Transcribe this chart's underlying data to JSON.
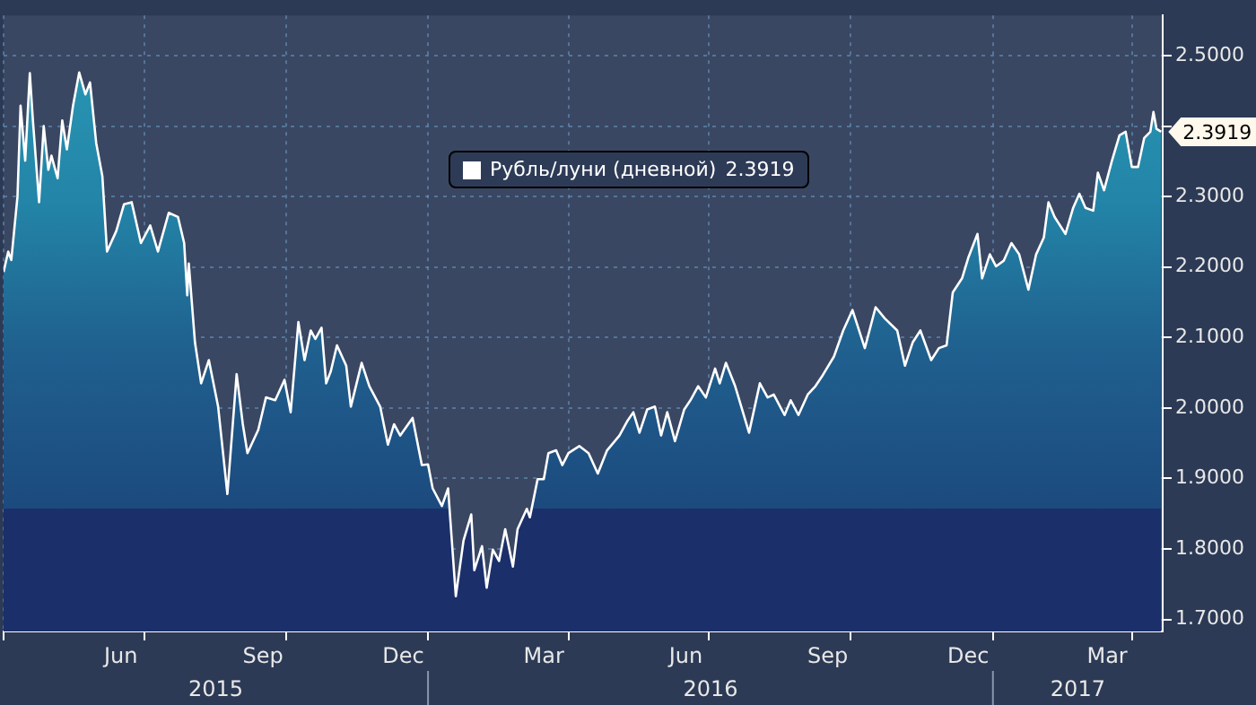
{
  "chart_data": {
    "type": "area",
    "series": [
      {
        "name": "Рубль/луни (дневной)",
        "color": "#ffffff",
        "x": [
          "2015-04-01",
          "2015-04-04",
          "2015-04-06",
          "2015-04-10",
          "2015-04-12",
          "2015-04-15",
          "2015-04-18",
          "2015-04-20",
          "2015-04-24",
          "2015-04-27",
          "2015-04-30",
          "2015-05-02",
          "2015-05-06",
          "2015-05-09",
          "2015-05-12",
          "2015-05-16",
          "2015-05-20",
          "2015-05-24",
          "2015-05-27",
          "2015-05-31",
          "2015-06-04",
          "2015-06-07",
          "2015-06-13",
          "2015-06-18",
          "2015-06-23",
          "2015-06-29",
          "2015-07-05",
          "2015-07-10",
          "2015-07-17",
          "2015-07-23",
          "2015-07-27",
          "2015-07-29",
          "2015-07-30",
          "2015-08-03",
          "2015-08-07",
          "2015-08-12",
          "2015-08-18",
          "2015-08-24",
          "2015-08-30",
          "2015-09-03",
          "2015-09-06",
          "2015-09-13",
          "2015-09-18",
          "2015-09-24",
          "2015-09-30",
          "2015-10-04",
          "2015-10-09",
          "2015-10-13",
          "2015-10-17",
          "2015-10-20",
          "2015-10-24",
          "2015-10-27",
          "2015-10-30",
          "2015-11-03",
          "2015-11-09",
          "2015-11-12",
          "2015-11-19",
          "2015-11-24",
          "2015-12-01",
          "2015-12-06",
          "2015-12-10",
          "2015-12-14",
          "2015-12-22",
          "2015-12-28",
          "2016-01-01",
          "2016-01-04",
          "2016-01-10",
          "2016-01-14",
          "2016-01-19",
          "2016-01-24",
          "2016-01-29",
          "2016-01-31",
          "2016-02-05",
          "2016-02-08",
          "2016-02-12",
          "2016-02-16",
          "2016-02-20",
          "2016-02-25",
          "2016-02-28",
          "2016-03-05",
          "2016-03-07",
          "2016-03-12",
          "2016-03-16",
          "2016-03-19",
          "2016-03-24",
          "2016-03-28",
          "2016-04-01",
          "2016-04-08",
          "2016-04-14",
          "2016-04-20",
          "2016-04-26",
          "2016-05-04",
          "2016-05-09",
          "2016-05-13",
          "2016-05-17",
          "2016-05-22",
          "2016-05-27",
          "2016-05-31",
          "2016-06-04",
          "2016-06-09",
          "2016-06-15",
          "2016-06-19",
          "2016-06-24",
          "2016-06-29",
          "2016-07-05",
          "2016-07-08",
          "2016-07-12",
          "2016-07-18",
          "2016-07-27",
          "2016-08-03",
          "2016-08-08",
          "2016-08-12",
          "2016-08-19",
          "2016-08-23",
          "2016-08-28",
          "2016-09-03",
          "2016-09-08",
          "2016-09-12",
          "2016-09-20",
          "2016-09-26",
          "2016-10-02",
          "2016-10-10",
          "2016-10-17",
          "2016-10-23",
          "2016-10-31",
          "2016-11-05",
          "2016-11-10",
          "2016-11-15",
          "2016-11-22",
          "2016-11-27",
          "2016-12-02",
          "2016-12-06",
          "2016-12-12",
          "2016-12-16",
          "2016-12-22",
          "2016-12-25",
          "2016-12-30",
          "2017-01-03",
          "2017-01-08",
          "2017-01-13",
          "2017-01-18",
          "2017-01-24",
          "2017-01-29",
          "2017-02-03",
          "2017-02-06",
          "2017-02-10",
          "2017-02-17",
          "2017-02-22",
          "2017-02-26",
          "2017-03-02",
          "2017-03-07",
          "2017-03-10",
          "2017-03-14",
          "2017-03-19",
          "2017-03-24",
          "2017-03-28",
          "2017-04-01",
          "2017-04-05",
          "2017-04-09",
          "2017-04-13",
          "2017-04-15",
          "2017-04-17",
          "2017-04-20"
        ],
        "values": [
          2.193,
          2.222,
          2.21,
          2.3,
          2.429,
          2.351,
          2.475,
          2.408,
          2.292,
          2.4,
          2.338,
          2.358,
          2.326,
          2.408,
          2.367,
          2.429,
          2.476,
          2.445,
          2.462,
          2.376,
          2.329,
          2.222,
          2.251,
          2.289,
          2.292,
          2.234,
          2.259,
          2.222,
          2.277,
          2.271,
          2.234,
          2.16,
          2.205,
          2.093,
          2.035,
          2.068,
          2.002,
          1.878,
          2.048,
          1.977,
          1.936,
          1.969,
          2.015,
          2.011,
          2.04,
          1.994,
          2.122,
          2.068,
          2.11,
          2.098,
          2.114,
          2.035,
          2.052,
          2.089,
          2.06,
          2.002,
          2.064,
          2.031,
          2.002,
          1.948,
          1.977,
          1.961,
          1.986,
          1.919,
          1.92,
          1.886,
          1.861,
          1.886,
          1.733,
          1.812,
          1.849,
          1.77,
          1.804,
          1.745,
          1.799,
          1.783,
          1.828,
          1.775,
          1.828,
          1.857,
          1.845,
          1.899,
          1.899,
          1.936,
          1.94,
          1.919,
          1.936,
          1.946,
          1.936,
          1.907,
          1.94,
          1.961,
          1.981,
          1.994,
          1.965,
          1.998,
          2.002,
          1.961,
          1.994,
          1.953,
          1.998,
          2.011,
          2.031,
          2.015,
          2.056,
          2.035,
          2.064,
          2.031,
          1.965,
          2.035,
          2.015,
          2.019,
          1.99,
          2.011,
          1.99,
          2.019,
          2.031,
          2.044,
          2.073,
          2.11,
          2.139,
          2.085,
          2.143,
          2.127,
          2.11,
          2.06,
          2.093,
          2.11,
          2.068,
          2.085,
          2.089,
          2.164,
          2.184,
          2.213,
          2.247,
          2.184,
          2.218,
          2.201,
          2.209,
          2.234,
          2.218,
          2.168,
          2.218,
          2.242,
          2.292,
          2.271,
          2.247,
          2.284,
          2.304,
          2.284,
          2.28,
          2.334,
          2.309,
          2.35,
          2.387,
          2.392,
          2.342,
          2.342,
          2.383,
          2.392,
          2.42,
          2.396,
          2.3919
        ]
      }
    ],
    "xlim": [
      "2015-04-01",
      "2017-04-21"
    ],
    "xticks": [
      {
        "value": "2015-04-01",
        "label": null
      },
      {
        "value": "2015-06-16",
        "label": "Jun"
      },
      {
        "value": "2015-07-01",
        "label": null
      },
      {
        "value": "2015-09-16",
        "label": "Sep"
      },
      {
        "value": "2015-10-01",
        "label": null
      },
      {
        "value": "2015-12-16",
        "label": "Dec"
      },
      {
        "value": "2016-01-01",
        "label": null
      },
      {
        "value": "2016-03-16",
        "label": "Mar"
      },
      {
        "value": "2016-04-01",
        "label": null
      },
      {
        "value": "2016-06-16",
        "label": "Jun"
      },
      {
        "value": "2016-07-01",
        "label": null
      },
      {
        "value": "2016-09-16",
        "label": "Sep"
      },
      {
        "value": "2016-10-01",
        "label": null
      },
      {
        "value": "2016-12-16",
        "label": "Dec"
      },
      {
        "value": "2017-01-01",
        "label": null
      },
      {
        "value": "2017-03-16",
        "label": "Mar"
      },
      {
        "value": "2017-04-01",
        "label": null
      }
    ],
    "ylim": [
      1.683,
      2.557
    ],
    "yticks": [
      {
        "value": 1.7,
        "label": "1.7000"
      },
      {
        "value": 1.8,
        "label": "1.8000"
      },
      {
        "value": 1.9,
        "label": "1.9000"
      },
      {
        "value": 2.0,
        "label": "2.0000"
      },
      {
        "value": 2.1,
        "label": "2.1000"
      },
      {
        "value": 2.2,
        "label": "2.2000"
      },
      {
        "value": 2.3,
        "label": "2.3000"
      },
      {
        "value": 2.4,
        "label": null
      },
      {
        "value": 2.5,
        "label": "2.5000"
      }
    ],
    "annotations": [
      "2015",
      "2016",
      "2017",
      {
        "text": "2.3919",
        "x": "2017-04-20",
        "y": 2.3919
      }
    ],
    "grid": true,
    "legend": "top",
    "line_style": "solid",
    "marker": "none"
  }
}
